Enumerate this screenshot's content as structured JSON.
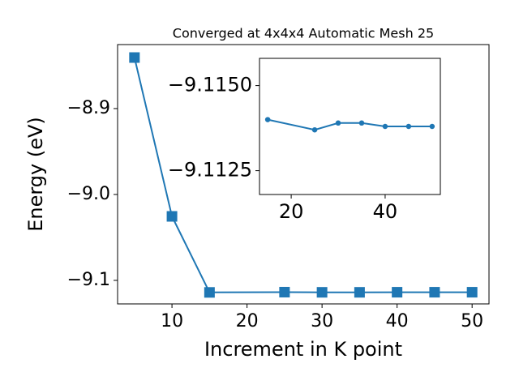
{
  "chart_data": [
    {
      "type": "line",
      "title": "Converged at 4x4x4 Automatic Mesh 25",
      "x_label": "Increment in K point",
      "y_label": "Energy (eV)",
      "x": [
        5,
        10,
        15,
        25,
        30,
        35,
        40,
        45,
        50
      ],
      "series": [
        {
          "color": "#1f77b4",
          "marker": "square",
          "values": [
            -8.8406,
            -9.0255,
            -9.114,
            -9.1137,
            -9.1139,
            -9.1139,
            -9.1138,
            -9.1138,
            -9.1138
          ]
        }
      ],
      "xlim": [
        2.75,
        52.25
      ],
      "xticks": [
        10,
        20,
        30,
        40,
        50
      ],
      "ylim": [
        -9.1274,
        -8.8255
      ],
      "yticks": [
        {
          "value": -9.1,
          "label": "−9.1"
        },
        {
          "value": -9.0,
          "label": "−9.0"
        },
        {
          "value": -8.9,
          "label": "−8.9"
        }
      ]
    },
    {
      "type": "line",
      "x": [
        15,
        25,
        30,
        35,
        40,
        45,
        50
      ],
      "series": [
        {
          "color": "#1f77b4",
          "marker": "circle",
          "values": [
            -9.114,
            -9.1137,
            -9.1139,
            -9.1139,
            -9.1138,
            -9.1138,
            -9.1138
          ]
        }
      ],
      "xlim": [
        13.25,
        51.75
      ],
      "xticks": [
        20,
        40
      ],
      "ylim": [
        -9.1118,
        -9.1158
      ],
      "yticks": [
        {
          "value": -9.115,
          "label": "−9.1150"
        },
        {
          "value": -9.1125,
          "label": "−9.1125"
        }
      ]
    }
  ]
}
